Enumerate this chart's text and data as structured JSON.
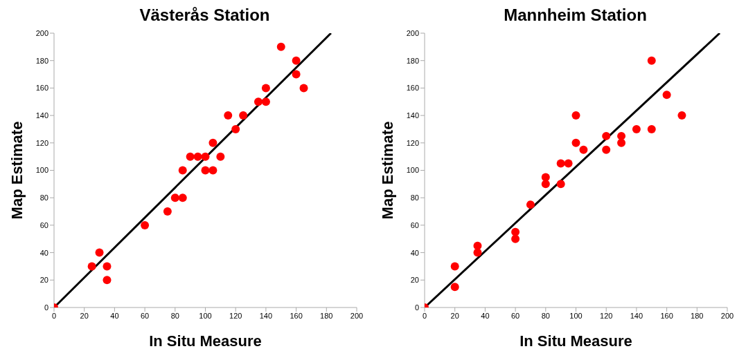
{
  "chart_data": [
    {
      "type": "scatter",
      "title": "Västerås Station",
      "xlabel": "In Situ Measure",
      "ylabel": "Map Estimate",
      "xlim": [
        0,
        200
      ],
      "ylim": [
        0,
        200
      ],
      "xticks": [
        0,
        20,
        40,
        60,
        80,
        100,
        120,
        140,
        160,
        180,
        200
      ],
      "yticks": [
        0,
        20,
        40,
        60,
        80,
        100,
        120,
        140,
        160,
        180,
        200
      ],
      "marker": "circle",
      "series": [
        {
          "color": "#ff0000",
          "x": [
            0,
            25,
            30,
            35,
            35,
            60,
            75,
            80,
            85,
            85,
            90,
            95,
            100,
            100,
            105,
            105,
            110,
            115,
            120,
            125,
            135,
            140,
            140,
            150,
            160,
            160,
            165
          ],
          "values": [
            0,
            30,
            40,
            30,
            20,
            60,
            70,
            80,
            80,
            100,
            110,
            110,
            110,
            100,
            100,
            120,
            110,
            140,
            130,
            140,
            150,
            150,
            160,
            190,
            180,
            170,
            160
          ]
        },
        {
          "type": "line",
          "color": "#000000",
          "marker": "none",
          "x": [
            0,
            183
          ],
          "values": [
            0,
            200
          ]
        }
      ]
    },
    {
      "type": "scatter",
      "title": "Mannheim Station",
      "xlabel": "In Situ Measure",
      "ylabel": "Map Estimate",
      "xlim": [
        0,
        200
      ],
      "ylim": [
        0,
        200
      ],
      "xticks": [
        0,
        20,
        40,
        60,
        80,
        100,
        120,
        140,
        160,
        180,
        200
      ],
      "yticks": [
        0,
        20,
        40,
        60,
        80,
        100,
        120,
        140,
        160,
        180,
        200
      ],
      "marker": "circle",
      "series": [
        {
          "color": "#ff0000",
          "x": [
            0,
            20,
            20,
            35,
            35,
            60,
            60,
            70,
            80,
            80,
            90,
            90,
            95,
            100,
            100,
            105,
            120,
            120,
            130,
            130,
            140,
            150,
            150,
            160,
            170
          ],
          "values": [
            0,
            30,
            15,
            45,
            40,
            55,
            50,
            75,
            95,
            90,
            105,
            90,
            105,
            140,
            120,
            115,
            125,
            115,
            125,
            120,
            130,
            180,
            130,
            155,
            140
          ]
        },
        {
          "type": "line",
          "color": "#000000",
          "marker": "none",
          "x": [
            0,
            195
          ],
          "values": [
            0,
            200
          ]
        }
      ]
    }
  ]
}
